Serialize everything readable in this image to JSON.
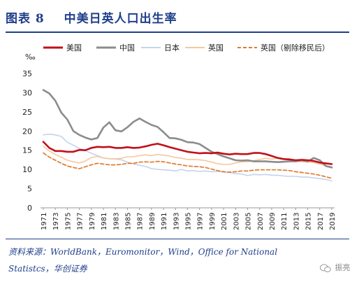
{
  "figure": {
    "number": "图表 8",
    "title": "中美日英人口出生率"
  },
  "source": {
    "line1": "资料来源：WorldBank，Euromonitor，Wind，Office for National",
    "line2": "Statistcs，华创证券"
  },
  "watermark": {
    "text": "振亮"
  },
  "chart_data": {
    "type": "line",
    "ylabel": "‰",
    "ylim": [
      0,
      35
    ],
    "yticks": [
      0,
      5,
      10,
      15,
      20,
      25,
      30,
      35
    ],
    "x": [
      1971,
      1972,
      1973,
      1974,
      1975,
      1976,
      1977,
      1978,
      1979,
      1980,
      1981,
      1982,
      1983,
      1984,
      1985,
      1986,
      1987,
      1988,
      1989,
      1990,
      1991,
      1992,
      1993,
      1994,
      1995,
      1996,
      1997,
      1998,
      1999,
      2000,
      2001,
      2002,
      2003,
      2004,
      2005,
      2006,
      2007,
      2008,
      2009,
      2010,
      2011,
      2012,
      2013,
      2014,
      2015,
      2016,
      2017,
      2018,
      2019
    ],
    "xticks": [
      1971,
      1973,
      1975,
      1977,
      1979,
      1981,
      1983,
      1985,
      1987,
      1989,
      1991,
      1993,
      1995,
      1997,
      1999,
      2001,
      2003,
      2005,
      2007,
      2009,
      2011,
      2013,
      2015,
      2017,
      2019
    ],
    "grid": false,
    "legend_position": "top",
    "series": [
      {
        "name": "美国",
        "color": "#c0101a",
        "width": 2.6,
        "dash": "",
        "values": [
          17.2,
          15.6,
          14.8,
          14.8,
          14.6,
          14.6,
          15.1,
          15.0,
          15.6,
          15.9,
          15.8,
          15.9,
          15.6,
          15.6,
          15.8,
          15.6,
          15.7,
          16.0,
          16.4,
          16.7,
          16.3,
          15.8,
          15.4,
          15.0,
          14.6,
          14.4,
          14.2,
          14.3,
          14.2,
          14.4,
          14.1,
          13.9,
          14.1,
          14.0,
          14.0,
          14.3,
          14.3,
          14.0,
          13.5,
          13.0,
          12.7,
          12.6,
          12.4,
          12.5,
          12.4,
          12.2,
          11.8,
          11.6,
          11.4
        ]
      },
      {
        "name": "中国",
        "color": "#8c8c8c",
        "width": 2.6,
        "dash": "",
        "values": [
          30.7,
          29.8,
          27.9,
          24.8,
          23.0,
          20.0,
          19.0,
          18.3,
          17.8,
          18.2,
          20.9,
          22.3,
          20.2,
          19.9,
          21.0,
          22.4,
          23.3,
          22.4,
          21.6,
          21.1,
          19.7,
          18.2,
          18.1,
          17.7,
          17.1,
          17.0,
          16.6,
          15.6,
          14.6,
          14.0,
          13.4,
          12.9,
          12.4,
          12.3,
          12.4,
          12.1,
          12.1,
          12.1,
          12.0,
          11.9,
          12.0,
          12.1,
          12.1,
          12.4,
          12.1,
          13.0,
          12.4,
          10.9,
          10.5
        ]
      },
      {
        "name": "日本",
        "color": "#c5d3ec",
        "width": 1.6,
        "dash": "",
        "values": [
          19.0,
          19.2,
          19.0,
          18.6,
          17.1,
          16.3,
          15.5,
          14.9,
          14.2,
          13.6,
          13.0,
          12.8,
          12.7,
          12.5,
          11.9,
          11.4,
          11.1,
          10.8,
          10.2,
          10.0,
          9.9,
          9.8,
          9.6,
          10.0,
          9.6,
          9.7,
          9.5,
          9.6,
          9.4,
          9.5,
          9.3,
          9.2,
          8.9,
          8.8,
          8.4,
          8.7,
          8.6,
          8.7,
          8.5,
          8.5,
          8.3,
          8.2,
          8.2,
          8.0,
          8.0,
          7.8,
          7.6,
          7.4,
          7.0
        ]
      },
      {
        "name": "英国",
        "color": "#f6c79e",
        "width": 1.6,
        "dash": "",
        "values": [
          16.0,
          14.8,
          13.9,
          13.2,
          12.4,
          12.0,
          11.7,
          12.2,
          13.1,
          13.4,
          13.0,
          12.8,
          12.8,
          12.9,
          13.3,
          13.3,
          13.6,
          13.8,
          13.6,
          13.9,
          13.7,
          13.5,
          13.1,
          12.9,
          12.6,
          12.6,
          12.5,
          12.3,
          11.9,
          11.5,
          11.3,
          11.3,
          11.7,
          12.0,
          12.0,
          12.3,
          12.6,
          12.9,
          12.7,
          12.9,
          12.8,
          12.8,
          12.1,
          12.0,
          11.9,
          11.8,
          11.4,
          11.0,
          10.7
        ]
      },
      {
        "name": "英国（剔除移民后）",
        "color": "#e07b2c",
        "width": 1.7,
        "dash": "5,3",
        "values": [
          14.3,
          13.2,
          12.4,
          11.6,
          10.9,
          10.5,
          10.2,
          10.7,
          11.2,
          11.6,
          11.4,
          11.2,
          11.2,
          11.3,
          11.6,
          11.6,
          11.9,
          12.0,
          11.9,
          12.1,
          12.0,
          11.7,
          11.4,
          11.2,
          10.9,
          10.8,
          10.7,
          10.5,
          10.1,
          9.7,
          9.4,
          9.3,
          9.4,
          9.6,
          9.6,
          9.8,
          9.9,
          9.9,
          9.9,
          9.9,
          9.8,
          9.7,
          9.4,
          9.2,
          9.0,
          8.8,
          8.5,
          8.1,
          7.7
        ]
      }
    ]
  }
}
